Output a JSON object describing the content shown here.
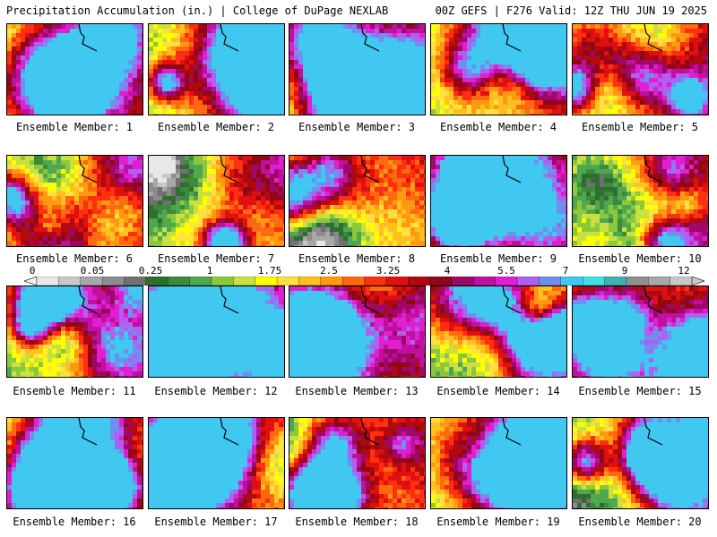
{
  "header": {
    "left_title": "Precipitation Accumulation (in.) | College of DuPage NEXLAB",
    "right_title": "00Z GEFS | F276 Valid: 12Z THU JUN 19 2025"
  },
  "members": [
    {
      "label": "Ensemble Member: 1",
      "seed": 11
    },
    {
      "label": "Ensemble Member: 2",
      "seed": 23
    },
    {
      "label": "Ensemble Member: 3",
      "seed": 37
    },
    {
      "label": "Ensemble Member: 4",
      "seed": 41
    },
    {
      "label": "Ensemble Member: 5",
      "seed": 53
    },
    {
      "label": "Ensemble Member: 6",
      "seed": 67
    },
    {
      "label": "Ensemble Member: 7",
      "seed": 71
    },
    {
      "label": "Ensemble Member: 8",
      "seed": 83
    },
    {
      "label": "Ensemble Member: 9",
      "seed": 97
    },
    {
      "label": "Ensemble Member: 10",
      "seed": 101
    },
    {
      "label": "Ensemble Member: 11",
      "seed": 113
    },
    {
      "label": "Ensemble Member: 12",
      "seed": 127
    },
    {
      "label": "Ensemble Member: 13",
      "seed": 131
    },
    {
      "label": "Ensemble Member: 14",
      "seed": 149
    },
    {
      "label": "Ensemble Member: 15",
      "seed": 151
    },
    {
      "label": "Ensemble Member: 16",
      "seed": 163
    },
    {
      "label": "Ensemble Member: 17",
      "seed": 173
    },
    {
      "label": "Ensemble Member: 18",
      "seed": 181
    },
    {
      "label": "Ensemble Member: 19",
      "seed": 191
    },
    {
      "label": "Ensemble Member: 20",
      "seed": 197
    }
  ],
  "colorbar": {
    "tick_labels": [
      "0",
      "0.05",
      "0.25",
      "1",
      "1.75",
      "2.5",
      "3.25",
      "4",
      "5.5",
      "7",
      "9",
      "12"
    ],
    "colors": [
      "#e8e8e8",
      "#c8c8c8",
      "#a8a8a8",
      "#8c8c8c",
      "#707070",
      "#2e6e2e",
      "#3d8a3d",
      "#4fa84f",
      "#8cc83c",
      "#c8e040",
      "#ffff00",
      "#ffe040",
      "#ffc020",
      "#ff9a10",
      "#ff6a10",
      "#ff3010",
      "#e01010",
      "#b00a10",
      "#900818",
      "#a00868",
      "#c010a0",
      "#e020d0",
      "#b060f0",
      "#7090f0",
      "#40c8f0",
      "#40e0e0",
      "#40b0b0",
      "#909090",
      "#a8a8a8",
      "#c8c8c8"
    ]
  }
}
